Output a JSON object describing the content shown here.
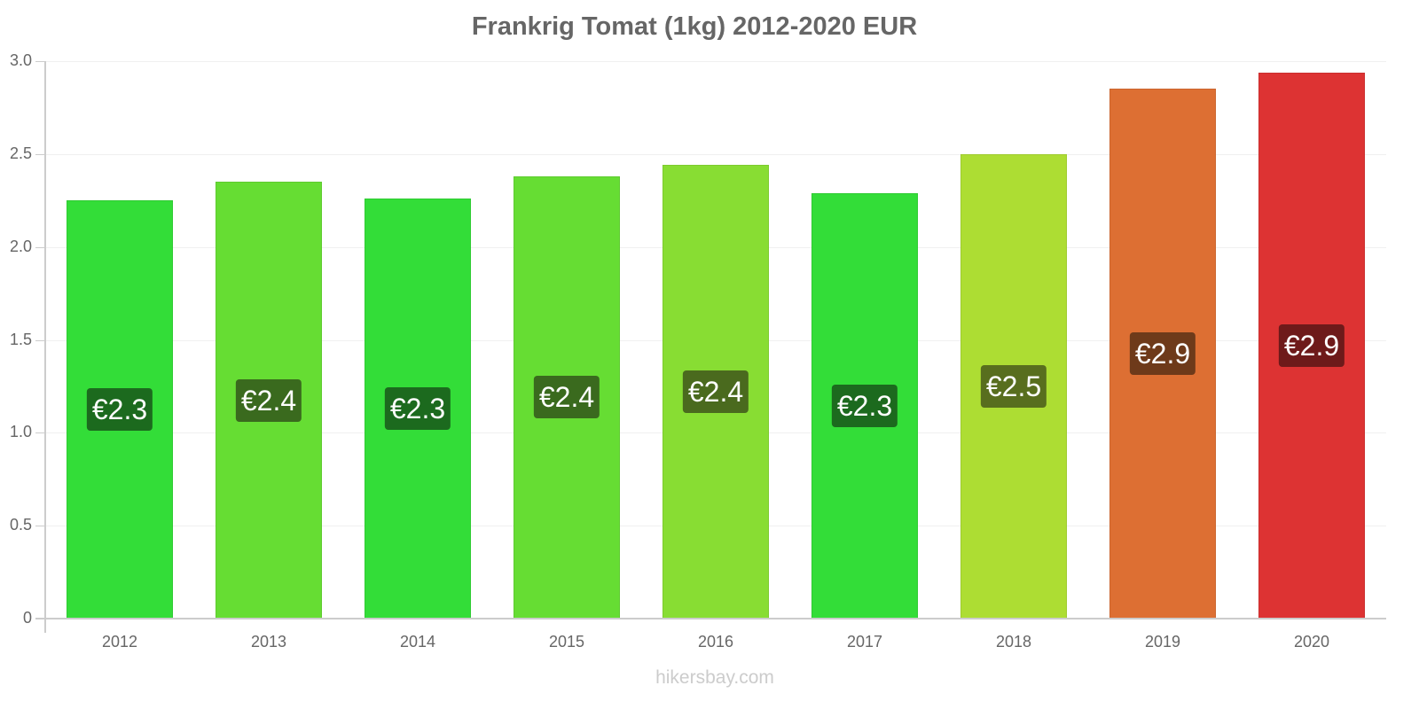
{
  "title": "Frankrig Tomat (1kg) 2012-2020 EUR",
  "watermark": "hikersbay.com",
  "yaxis": {
    "ticks": [
      {
        "label": "3.0",
        "value": 3.0
      },
      {
        "label": "2.5",
        "value": 2.5
      },
      {
        "label": "2.0",
        "value": 2.0
      },
      {
        "label": "1.5",
        "value": 1.5
      },
      {
        "label": "1.0",
        "value": 1.0
      },
      {
        "label": "0.5",
        "value": 0.5
      },
      {
        "label": "0",
        "value": 0
      }
    ]
  },
  "bars": [
    {
      "year": "2012",
      "value": 2.25,
      "label": "€2.3",
      "color": "#33dd38",
      "label_bg": "#1c6a1e"
    },
    {
      "year": "2013",
      "value": 2.35,
      "label": "€2.4",
      "color": "#66dd33",
      "label_bg": "#3a6a1e"
    },
    {
      "year": "2014",
      "value": 2.26,
      "label": "€2.3",
      "color": "#33dd38",
      "label_bg": "#1c6a1e"
    },
    {
      "year": "2015",
      "value": 2.38,
      "label": "€2.4",
      "color": "#66dd33",
      "label_bg": "#3a6a1e"
    },
    {
      "year": "2016",
      "value": 2.44,
      "label": "€2.4",
      "color": "#88dd33",
      "label_bg": "#4a6a1e"
    },
    {
      "year": "2017",
      "value": 2.29,
      "label": "€2.3",
      "color": "#33dd38",
      "label_bg": "#1c6a1e"
    },
    {
      "year": "2018",
      "value": 2.5,
      "label": "€2.5",
      "color": "#addd33",
      "label_bg": "#586e1e"
    },
    {
      "year": "2019",
      "value": 2.85,
      "label": "€2.9",
      "color": "#dd6f33",
      "label_bg": "#6e3a1a"
    },
    {
      "year": "2020",
      "value": 2.94,
      "label": "€2.9",
      "color": "#dd3333",
      "label_bg": "#6e1a1a"
    }
  ],
  "chart_data": {
    "type": "bar",
    "title": "Frankrig Tomat (1kg) 2012-2020 EUR",
    "xlabel": "",
    "ylabel": "",
    "categories": [
      "2012",
      "2013",
      "2014",
      "2015",
      "2016",
      "2017",
      "2018",
      "2019",
      "2020"
    ],
    "values": [
      2.25,
      2.35,
      2.26,
      2.38,
      2.44,
      2.29,
      2.5,
      2.85,
      2.94
    ],
    "data_labels": [
      "€2.3",
      "€2.4",
      "€2.3",
      "€2.4",
      "€2.4",
      "€2.3",
      "€2.5",
      "€2.9",
      "€2.9"
    ],
    "ylim": [
      0,
      3.0
    ],
    "yticks": [
      0,
      0.5,
      1.0,
      1.5,
      2.0,
      2.5,
      3.0
    ],
    "grid": true,
    "legend": null,
    "source_text": "hikersbay.com"
  }
}
